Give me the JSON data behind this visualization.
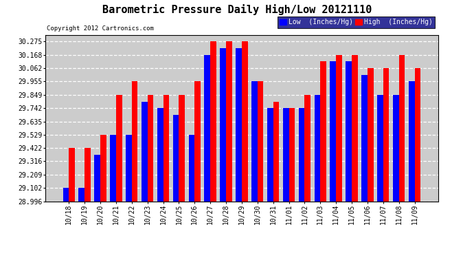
{
  "title": "Barometric Pressure Daily High/Low 20121110",
  "copyright": "Copyright 2012 Cartronics.com",
  "dates": [
    "10/18",
    "10/19",
    "10/20",
    "10/21",
    "10/22",
    "10/23",
    "10/24",
    "10/25",
    "10/26",
    "10/27",
    "10/28",
    "10/29",
    "10/30",
    "10/31",
    "11/01",
    "11/02",
    "11/03",
    "11/04",
    "11/05",
    "11/06",
    "11/07",
    "11/08",
    "11/09"
  ],
  "low_values": [
    29.102,
    29.102,
    29.37,
    29.529,
    29.529,
    29.795,
    29.742,
    29.688,
    29.529,
    30.168,
    30.222,
    30.222,
    29.955,
    29.742,
    29.742,
    29.742,
    29.849,
    30.115,
    30.115,
    30.008,
    29.849,
    29.849,
    29.955
  ],
  "high_values": [
    29.422,
    29.422,
    29.529,
    29.849,
    29.955,
    29.849,
    29.849,
    29.849,
    29.955,
    30.275,
    30.275,
    30.275,
    29.955,
    29.795,
    29.742,
    29.849,
    30.115,
    30.168,
    30.168,
    30.062,
    30.062,
    30.168,
    30.062
  ],
  "ylim_min": 28.996,
  "ylim_max": 30.329,
  "yticks": [
    28.996,
    29.102,
    29.209,
    29.316,
    29.422,
    29.529,
    29.635,
    29.742,
    29.849,
    29.955,
    30.062,
    30.168,
    30.275
  ],
  "bar_width": 0.38,
  "low_color": "#0000ff",
  "high_color": "#ff0000",
  "bg_color": "#ffffff",
  "plot_bg_color": "#cccccc",
  "grid_color": "#ffffff",
  "title_fontsize": 11,
  "tick_fontsize": 7,
  "copyright_fontsize": 6.5,
  "baseline": 28.996
}
